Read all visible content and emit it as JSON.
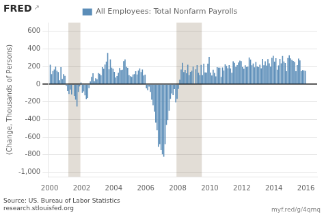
{
  "chart_data": {
    "type": "bar",
    "title": "All Employees: Total Nonfarm Payrolls",
    "y_label": "(Change, Thousands of Persons)",
    "annotations": [
      "FRED",
      "↗",
      "Source: US. Bureau of Labor Statistics\nresearch.stlouisfed.org",
      "myf.red/g/4qmq"
    ],
    "legend": "top",
    "grid": "y",
    "xlim": [
      1999.9,
      2016.7
    ],
    "xticks": [
      2000,
      2002,
      2004,
      2006,
      2008,
      2010,
      2012,
      2014,
      2016
    ],
    "ylim": [
      -1050,
      700
    ],
    "yticks": [
      {
        "value": -1000,
        "label": "-1,000"
      },
      -800,
      -600,
      -400,
      -200,
      0,
      200,
      400,
      600
    ],
    "shaded": [
      {
        "start": 2001.17,
        "end": 2001.92,
        "color": "#e2ddd6"
      },
      {
        "start": 2007.92,
        "end": 2009.5,
        "color": "#e2ddd6"
      }
    ],
    "x": [
      2000.0416666667,
      2000.125,
      2000.2083333333,
      2000.2916666667,
      2000.375,
      2000.4583333333,
      2000.5416666667,
      2000.625,
      2000.7083333333,
      2000.7916666667,
      2000.875,
      2000.9583333333,
      2001.0416666667,
      2001.125,
      2001.2083333333,
      2001.2916666667,
      2001.375,
      2001.4583333333,
      2001.5416666667,
      2001.625,
      2001.7083333333,
      2001.7916666667,
      2001.875,
      2001.9583333333,
      2002.0416666667,
      2002.125,
      2002.2083333333,
      2002.2916666667,
      2002.375,
      2002.4583333333,
      2002.5416666667,
      2002.625,
      2002.7083333333,
      2002.7916666667,
      2002.875,
      2002.9583333333,
      2003.0416666667,
      2003.125,
      2003.2083333333,
      2003.2916666667,
      2003.375,
      2003.4583333333,
      2003.5416666667,
      2003.625,
      2003.7083333333,
      2003.7916666667,
      2003.875,
      2003.9583333333,
      2004.0416666667,
      2004.125,
      2004.2083333333,
      2004.2916666667,
      2004.375,
      2004.4583333333,
      2004.5416666667,
      2004.625,
      2004.7083333333,
      2004.7916666667,
      2004.875,
      2004.9583333333,
      2005.0416666667,
      2005.125,
      2005.2083333333,
      2005.2916666667,
      2005.375,
      2005.4583333333,
      2005.5416666667,
      2005.625,
      2005.7083333333,
      2005.7916666667,
      2005.875,
      2005.9583333333,
      2006.0416666667,
      2006.125,
      2006.2083333333,
      2006.2916666667,
      2006.375,
      2006.4583333333,
      2006.5416666667,
      2006.625,
      2006.7083333333,
      2006.7916666667,
      2006.875,
      2006.9583333333,
      2007.0416666667,
      2007.125,
      2007.2083333333,
      2007.2916666667,
      2007.375,
      2007.4583333333,
      2007.5416666667,
      2007.625,
      2007.7083333333,
      2007.7916666667,
      2007.875,
      2007.9583333333,
      2008.0416666667,
      2008.125,
      2008.2083333333,
      2008.2916666667,
      2008.375,
      2008.4583333333,
      2008.5416666667,
      2008.625,
      2008.7083333333,
      2008.7916666667,
      2008.875,
      2008.9583333333,
      2009.0416666667,
      2009.125,
      2009.2083333333,
      2009.2916666667,
      2009.375,
      2009.4583333333,
      2009.5416666667,
      2009.625,
      2009.7083333333,
      2009.7916666667,
      2009.875,
      2009.9583333333,
      2010.0416666667,
      2010.125,
      2010.2083333333,
      2010.2916666667,
      2010.375,
      2010.4583333333,
      2010.5416666667,
      2010.625,
      2010.7083333333,
      2010.7916666667,
      2010.875,
      2010.9583333333,
      2011.0416666667,
      2011.125,
      2011.2083333333,
      2011.2916666667,
      2011.375,
      2011.4583333333,
      2011.5416666667,
      2011.625,
      2011.7083333333,
      2011.7916666667,
      2011.875,
      2011.9583333333,
      2012.0416666667,
      2012.125,
      2012.2083333333,
      2012.2916666667,
      2012.375,
      2012.4583333333,
      2012.5416666667,
      2012.625,
      2012.7083333333,
      2012.7916666667,
      2012.875,
      2012.9583333333,
      2013.0416666667,
      2013.125,
      2013.2083333333,
      2013.2916666667,
      2013.375,
      2013.4583333333,
      2013.5416666667,
      2013.625,
      2013.7083333333,
      2013.7916666667,
      2013.875,
      2013.9583333333,
      2014.0416666667,
      2014.125,
      2014.2083333333,
      2014.2916666667,
      2014.375,
      2014.4583333333,
      2014.5416666667,
      2014.625,
      2014.7083333333,
      2014.7916666667,
      2014.875,
      2014.9583333333,
      2015.0416666667,
      2015.125,
      2015.2083333333,
      2015.2916666667,
      2015.375,
      2015.4583333333,
      2015.5416666667,
      2015.625,
      2015.7083333333,
      2015.7916666667,
      2015.875,
      2015.9583333333
    ],
    "series": [
      {
        "name": "All Employees: Total Nonfarm Payrolls",
        "color": "#5b8db8",
        "values": [
          222,
          115,
          150,
          168,
          200,
          154,
          139,
          45,
          195,
          60,
          115,
          95,
          -17,
          -78,
          -110,
          -60,
          -116,
          -4,
          -133,
          -175,
          -253,
          -88,
          -26,
          20,
          -99,
          -81,
          -126,
          -171,
          -156,
          -45,
          34,
          84,
          125,
          35,
          68,
          57,
          126,
          118,
          102,
          195,
          175,
          224,
          257,
          355,
          170,
          281,
          188,
          175,
          140,
          76,
          93,
          131,
          185,
          162,
          165,
          262,
          281,
          199,
          187,
          103,
          92,
          84,
          110,
          114,
          148,
          110,
          156,
          178,
          138,
          167,
          100,
          108,
          -46,
          -68,
          -28,
          -87,
          -175,
          -240,
          -312,
          -436,
          -524,
          -711,
          -681,
          -746,
          -796,
          -823,
          -681,
          -463,
          -407,
          -302,
          -168,
          -105,
          -125,
          -54,
          -207,
          -167,
          -53,
          50,
          167,
          244,
          139,
          163,
          125,
          221,
          104,
          140,
          153,
          200,
          -5,
          170,
          218,
          130,
          103,
          220,
          103,
          233,
          135,
          132,
          234,
          312,
          133,
          100,
          166,
          129,
          89,
          195,
          188,
          188,
          84,
          190,
          155,
          225,
          209,
          181,
          218,
          178,
          130,
          260,
          243,
          198,
          217,
          246,
          269,
          262,
          196,
          175,
          216,
          197,
          201,
          303,
          280,
          215,
          235,
          192,
          252,
          203,
          195,
          222,
          180,
          288,
          215,
          260,
          212,
          285,
          237,
          201,
          300,
          322,
          257,
          295,
          165,
          213,
          288,
          237,
          321,
          259,
          242,
          147,
          297,
          329,
          294,
          277,
          264,
          253,
          147,
          218,
          292,
          271,
          148,
          162,
          155,
          152
        ]
      }
    ]
  }
}
